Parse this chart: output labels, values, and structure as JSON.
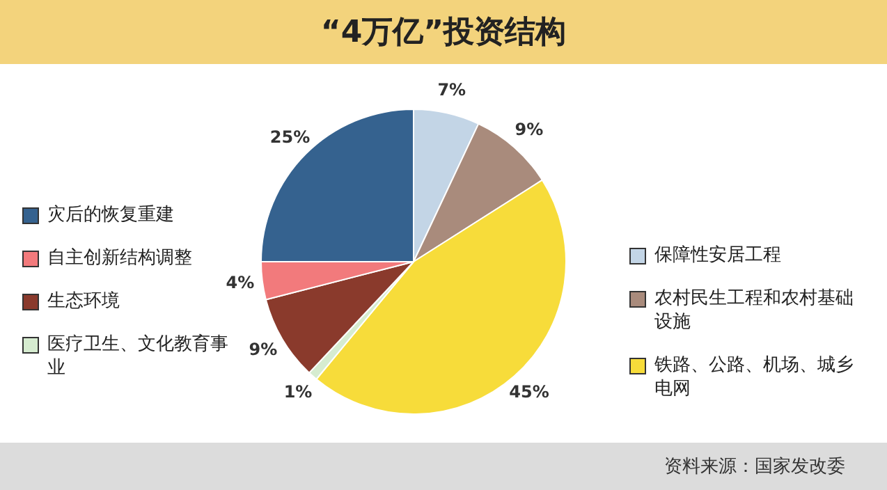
{
  "chart_data": {
    "type": "pie",
    "title": "“4万亿”投资结构",
    "categories": [
      "保障性安居工程",
      "农村民生工程和农村基础设施",
      "铁路、公路、机场、城乡电网",
      "医疗卫生、文化教育事业",
      "生态环境",
      "自主创新结构调整",
      "灾后的恢复重建"
    ],
    "values": [
      7,
      9,
      45,
      1,
      9,
      4,
      25
    ],
    "colors": [
      "#c3d5e6",
      "#a98b7c",
      "#f7dc3a",
      "#d6ecd0",
      "#8a3a2c",
      "#f27a7c",
      "#35628f"
    ],
    "value_labels": [
      "7%",
      "9%",
      "45%",
      "1%",
      "9%",
      "4%",
      "25%"
    ],
    "legend": "right",
    "annotations": [
      "资料来源：国家发改委"
    ]
  }
}
